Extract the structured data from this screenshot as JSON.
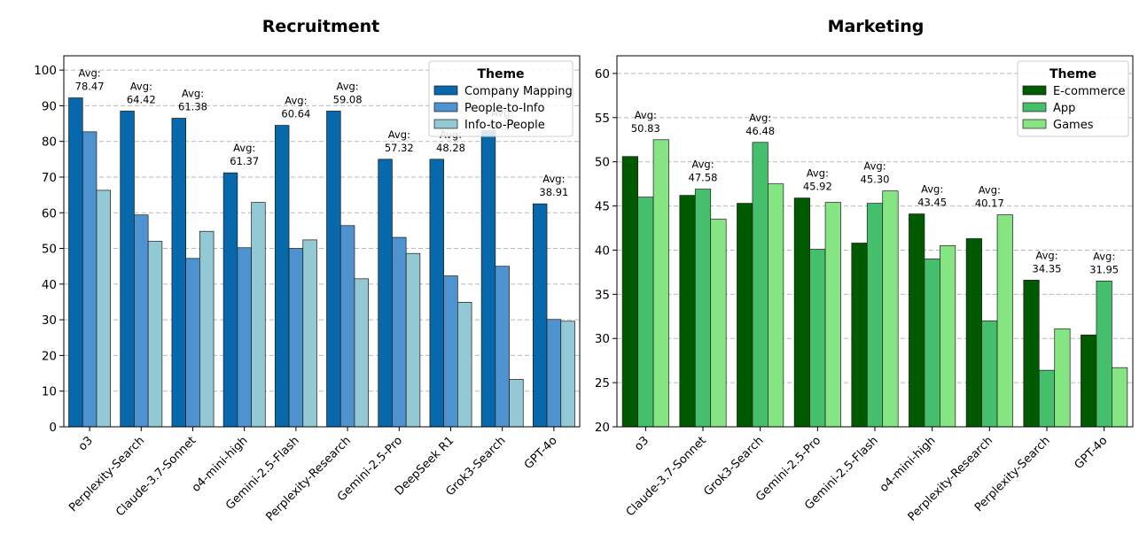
{
  "chart_data": [
    {
      "type": "bar",
      "title": "Recruitment",
      "xlabel": "",
      "ylabel": "",
      "ylim": [
        0,
        104
      ],
      "yticks": [
        0,
        10,
        20,
        30,
        40,
        50,
        60,
        70,
        80,
        90,
        100
      ],
      "grid": "y-dashed",
      "legend": {
        "title": "Theme",
        "position": "top-right"
      },
      "categories": [
        "o3",
        "Perplexity-Search",
        "Claude-3.7-Sonnet",
        "o4-mini-high",
        "Gemini-2.5-Flash",
        "Perplexity-Research",
        "Gemini-2.5-Pro",
        "DeepSeek R1",
        "Grok3-Search",
        "GPT-4o"
      ],
      "series": [
        {
          "name": "Company Mapping",
          "color": "#0868ac",
          "values": [
            92.2,
            88.5,
            86.5,
            71.2,
            84.5,
            88.5,
            75.0,
            75.0,
            83.0,
            62.5
          ]
        },
        {
          "name": "People-to-Info",
          "color": "#4e92d0",
          "values": [
            82.7,
            59.4,
            47.2,
            50.2,
            50.0,
            56.4,
            53.1,
            42.3,
            45.0,
            30.1
          ]
        },
        {
          "name": "Info-to-People",
          "color": "#92c9d4",
          "values": [
            66.3,
            52.0,
            54.8,
            62.9,
            52.4,
            41.5,
            48.6,
            34.9,
            13.3,
            29.6
          ]
        }
      ],
      "avg_labels": [
        "Avg:\n78.47",
        "Avg:\n64.42",
        "Avg:\n61.38",
        "Avg:\n61.37",
        "Avg:\n60.64",
        "Avg:\n59.08",
        "Avg:\n57.32",
        "Avg:\n48.28",
        "Avg:\n47.10",
        "Avg:\n38.91"
      ]
    },
    {
      "type": "bar",
      "title": "Marketing",
      "xlabel": "",
      "ylabel": "",
      "ylim": [
        20,
        62
      ],
      "yticks": [
        20,
        25,
        30,
        35,
        40,
        45,
        50,
        55,
        60
      ],
      "grid": "y-dashed",
      "legend": {
        "title": "Theme",
        "position": "top-right"
      },
      "categories": [
        "o3",
        "Claude-3.7-Sonnet",
        "Grok3-Search",
        "Gemini-2.5-Pro",
        "Gemini-2.5-Flash",
        "o4-mini-high",
        "Perplexity-Research",
        "Perplexity-Search",
        "GPT-4o"
      ],
      "series": [
        {
          "name": "E-commerce",
          "color": "#005a00",
          "values": [
            50.6,
            46.2,
            45.3,
            45.9,
            40.8,
            44.1,
            41.3,
            36.6,
            30.4
          ]
        },
        {
          "name": "App",
          "color": "#45bf6b",
          "values": [
            46.0,
            46.9,
            52.2,
            40.1,
            45.3,
            39.0,
            32.0,
            26.4,
            36.5
          ]
        },
        {
          "name": "Games",
          "color": "#86e583",
          "values": [
            52.5,
            43.5,
            47.5,
            45.4,
            46.7,
            40.5,
            44.0,
            31.1,
            26.7
          ]
        }
      ],
      "avg_labels": [
        "Avg:\n50.83",
        "Avg:\n47.58",
        "Avg:\n46.48",
        "Avg:\n45.92",
        "Avg:\n45.30",
        "Avg:\n43.45",
        "Avg:\n40.17",
        "Avg:\n34.35",
        "Avg:\n31.95"
      ]
    }
  ]
}
